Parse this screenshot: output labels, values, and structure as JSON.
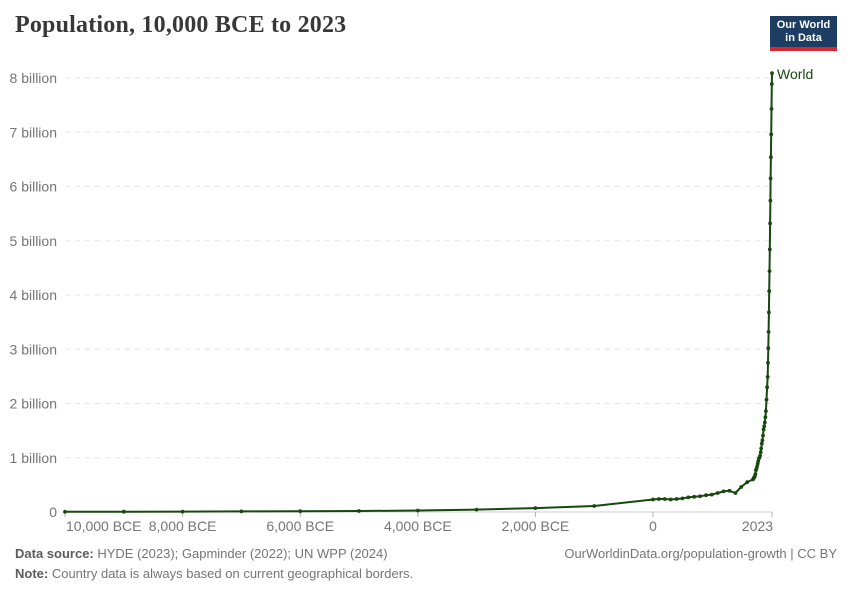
{
  "header": {
    "title": "Population, 10,000 BCE to 2023",
    "logo": {
      "line1": "Our World",
      "line2": "in Data",
      "bg_color": "#1d3d63",
      "accent_color": "#d7282f"
    }
  },
  "chart_data": {
    "type": "line",
    "title": "Population, 10,000 BCE to 2023",
    "series": [
      {
        "name": "World",
        "label": "World"
      }
    ],
    "series_label": "World",
    "line_color": "#18470f",
    "grid": "horizontal dashed",
    "gridline_color": "#e5e5e5",
    "axis_color": "#cccccc",
    "tick_color": "#afafaf",
    "tick_label_color": "#757575",
    "legend_position": "line-end-label",
    "x_range": [
      -10000,
      2023
    ],
    "y_range": [
      0,
      8
    ],
    "ylabel": "",
    "xlabel": "",
    "y_ticks": [
      {
        "value": 0,
        "label": "0"
      },
      {
        "value": 1,
        "label": "1 billion"
      },
      {
        "value": 2,
        "label": "2 billion"
      },
      {
        "value": 3,
        "label": "3 billion"
      },
      {
        "value": 4,
        "label": "4 billion"
      },
      {
        "value": 5,
        "label": "5 billion"
      },
      {
        "value": 6,
        "label": "6 billion"
      },
      {
        "value": 7,
        "label": "7 billion"
      },
      {
        "value": 8,
        "label": "8 billion"
      }
    ],
    "x_ticks": [
      {
        "year": -10000,
        "label": "10,000 BCE"
      },
      {
        "year": -8000,
        "label": "8,000 BCE"
      },
      {
        "year": -6000,
        "label": "6,000 BCE"
      },
      {
        "year": -4000,
        "label": "4,000 BCE"
      },
      {
        "year": -2000,
        "label": "2,000 BCE"
      },
      {
        "year": 0,
        "label": "0"
      },
      {
        "year": 2023,
        "label": "2023"
      }
    ],
    "points_units": "year, population in billions",
    "points": [
      [
        -10000,
        0.004
      ],
      [
        -9000,
        0.006
      ],
      [
        -8000,
        0.008
      ],
      [
        -7000,
        0.011
      ],
      [
        -6000,
        0.015
      ],
      [
        -5000,
        0.019
      ],
      [
        -4000,
        0.028
      ],
      [
        -3000,
        0.045
      ],
      [
        -2000,
        0.072
      ],
      [
        -1000,
        0.11
      ],
      [
        0,
        0.23
      ],
      [
        100,
        0.24
      ],
      [
        200,
        0.24
      ],
      [
        300,
        0.23
      ],
      [
        400,
        0.24
      ],
      [
        500,
        0.25
      ],
      [
        600,
        0.27
      ],
      [
        700,
        0.28
      ],
      [
        800,
        0.29
      ],
      [
        900,
        0.31
      ],
      [
        1000,
        0.32
      ],
      [
        1100,
        0.35
      ],
      [
        1200,
        0.38
      ],
      [
        1300,
        0.39
      ],
      [
        1400,
        0.35
      ],
      [
        1500,
        0.46
      ],
      [
        1600,
        0.55
      ],
      [
        1700,
        0.6
      ],
      [
        1710,
        0.62
      ],
      [
        1720,
        0.64
      ],
      [
        1730,
        0.66
      ],
      [
        1740,
        0.7
      ],
      [
        1750,
        0.77
      ],
      [
        1760,
        0.8
      ],
      [
        1770,
        0.84
      ],
      [
        1780,
        0.89
      ],
      [
        1790,
        0.94
      ],
      [
        1800,
        0.99
      ],
      [
        1810,
        1.0
      ],
      [
        1820,
        1.04
      ],
      [
        1830,
        1.1
      ],
      [
        1840,
        1.17
      ],
      [
        1850,
        1.26
      ],
      [
        1860,
        1.32
      ],
      [
        1870,
        1.41
      ],
      [
        1880,
        1.52
      ],
      [
        1890,
        1.58
      ],
      [
        1900,
        1.65
      ],
      [
        1910,
        1.75
      ],
      [
        1920,
        1.86
      ],
      [
        1930,
        2.07
      ],
      [
        1940,
        2.3
      ],
      [
        1950,
        2.49
      ],
      [
        1955,
        2.75
      ],
      [
        1960,
        3.02
      ],
      [
        1965,
        3.32
      ],
      [
        1970,
        3.68
      ],
      [
        1975,
        4.07
      ],
      [
        1980,
        4.44
      ],
      [
        1985,
        4.84
      ],
      [
        1990,
        5.32
      ],
      [
        1995,
        5.74
      ],
      [
        2000,
        6.15
      ],
      [
        2005,
        6.54
      ],
      [
        2010,
        6.96
      ],
      [
        2015,
        7.43
      ],
      [
        2020,
        7.89
      ],
      [
        2023,
        8.09
      ]
    ]
  },
  "footer": {
    "source_label": "Data source:",
    "source_text": " HYDE (2023); Gapminder (2022); UN WPP (2024)",
    "note_label": "Note:",
    "note_text": " Country data is always based on current geographical borders.",
    "credit": "OurWorldinData.org/population-growth | CC BY"
  }
}
